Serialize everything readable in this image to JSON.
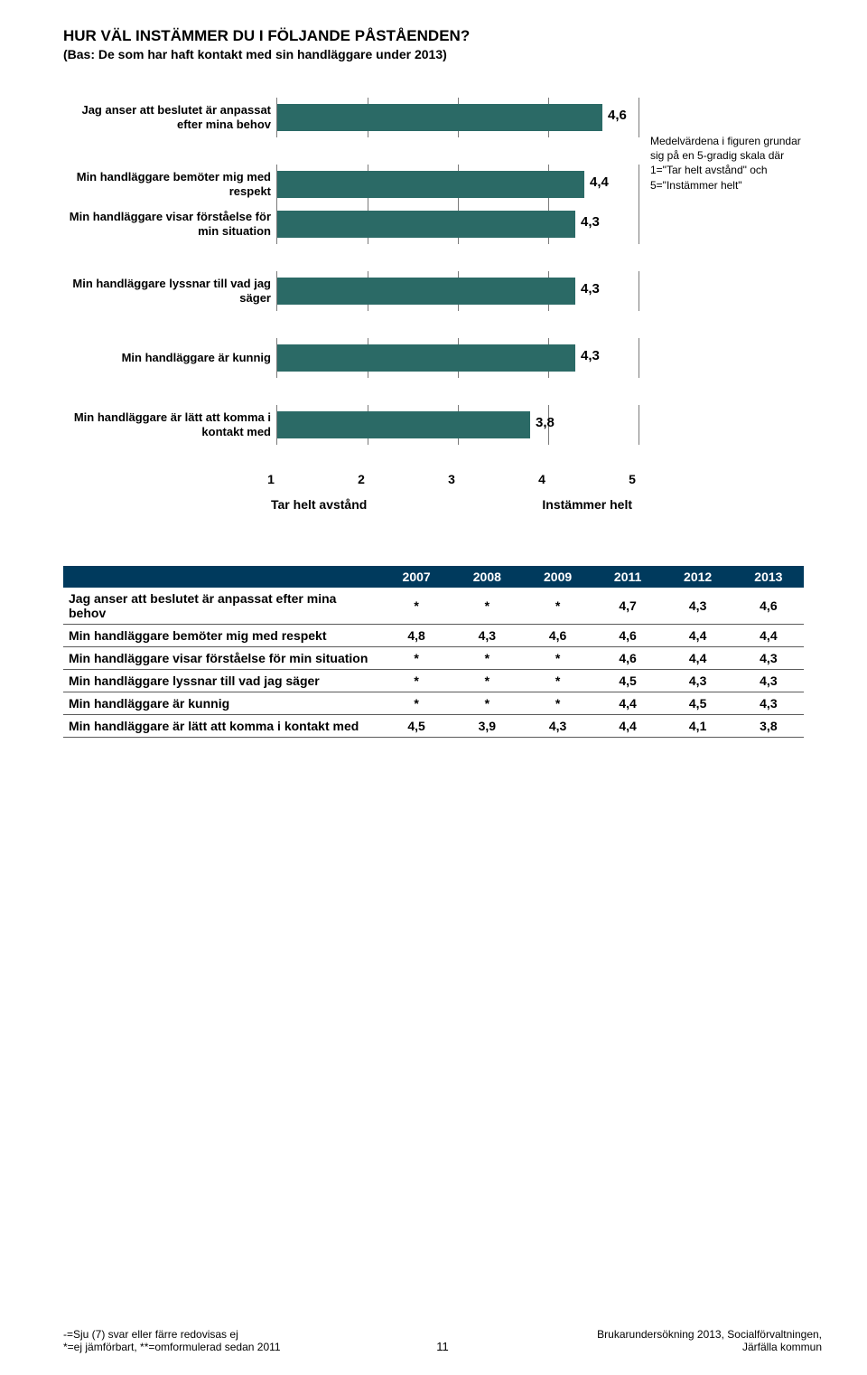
{
  "title": "HUR VÄL INSTÄMMER DU I FÖLJANDE PÅSTÅENDEN?",
  "subtitle": "(Bas: De som har haft kontakt med sin handläggare under 2013)",
  "callout": "Medelvärdena i figuren grundar sig på en 5-gradig skala där 1=\"Tar helt avstånd\" och 5=\"Instämmer helt\"",
  "chart": {
    "xmin": 1,
    "xmax": 5,
    "ticks": [
      1,
      2,
      3,
      4,
      5
    ],
    "left_axis_label": "Tar helt avstånd",
    "right_axis_label": "Instämmer helt",
    "bar_color": "#2b6a66",
    "groups": [
      {
        "rows": [
          {
            "label": "Jag anser att beslutet är anpassat efter mina behov",
            "value": 4.6,
            "value_text": "4,6"
          }
        ]
      },
      {
        "rows": [
          {
            "label": "Min handläggare bemöter mig med respekt",
            "value": 4.4,
            "value_text": "4,4"
          },
          {
            "label": "Min handläggare visar förståelse för min situation",
            "value": 4.3,
            "value_text": "4,3"
          }
        ]
      },
      {
        "rows": [
          {
            "label": "Min handläggare lyssnar till vad jag säger",
            "value": 4.3,
            "value_text": "4,3"
          }
        ]
      },
      {
        "rows": [
          {
            "label": "Min handläggare är kunnig",
            "value": 4.3,
            "value_text": "4,3"
          }
        ]
      },
      {
        "rows": [
          {
            "label": "Min handläggare är lätt att komma i kontakt med",
            "value": 3.8,
            "value_text": "3,8"
          }
        ]
      }
    ]
  },
  "table": {
    "columns": [
      "",
      "2007",
      "2008",
      "2009",
      "2011",
      "2012",
      "2013"
    ],
    "rows": [
      [
        "Jag anser att beslutet är anpassat efter mina behov",
        "*",
        "*",
        "*",
        "4,7",
        "4,3",
        "4,6"
      ],
      [
        "Min handläggare bemöter mig med respekt",
        "4,8",
        "4,3",
        "4,6",
        "4,6",
        "4,4",
        "4,4"
      ],
      [
        "Min handläggare visar förståelse för min situation",
        "*",
        "*",
        "*",
        "4,6",
        "4,4",
        "4,3"
      ],
      [
        "Min handläggare lyssnar till vad jag säger",
        "*",
        "*",
        "*",
        "4,5",
        "4,3",
        "4,3"
      ],
      [
        "Min handläggare är kunnig",
        "*",
        "*",
        "*",
        "4,4",
        "4,5",
        "4,3"
      ],
      [
        "Min handläggare är lätt att komma i kontakt med",
        "4,5",
        "3,9",
        "4,3",
        "4,4",
        "4,1",
        "3,8"
      ]
    ]
  },
  "footer": {
    "left_line1": "-=Sju (7) svar eller färre redovisas ej",
    "left_line2": "*=ej jämförbart, **=omformulerad sedan 2011",
    "page_no": "11",
    "right_line1": "Brukarundersökning 2013, Socialförvaltningen,",
    "right_line2": "Järfälla kommun"
  }
}
